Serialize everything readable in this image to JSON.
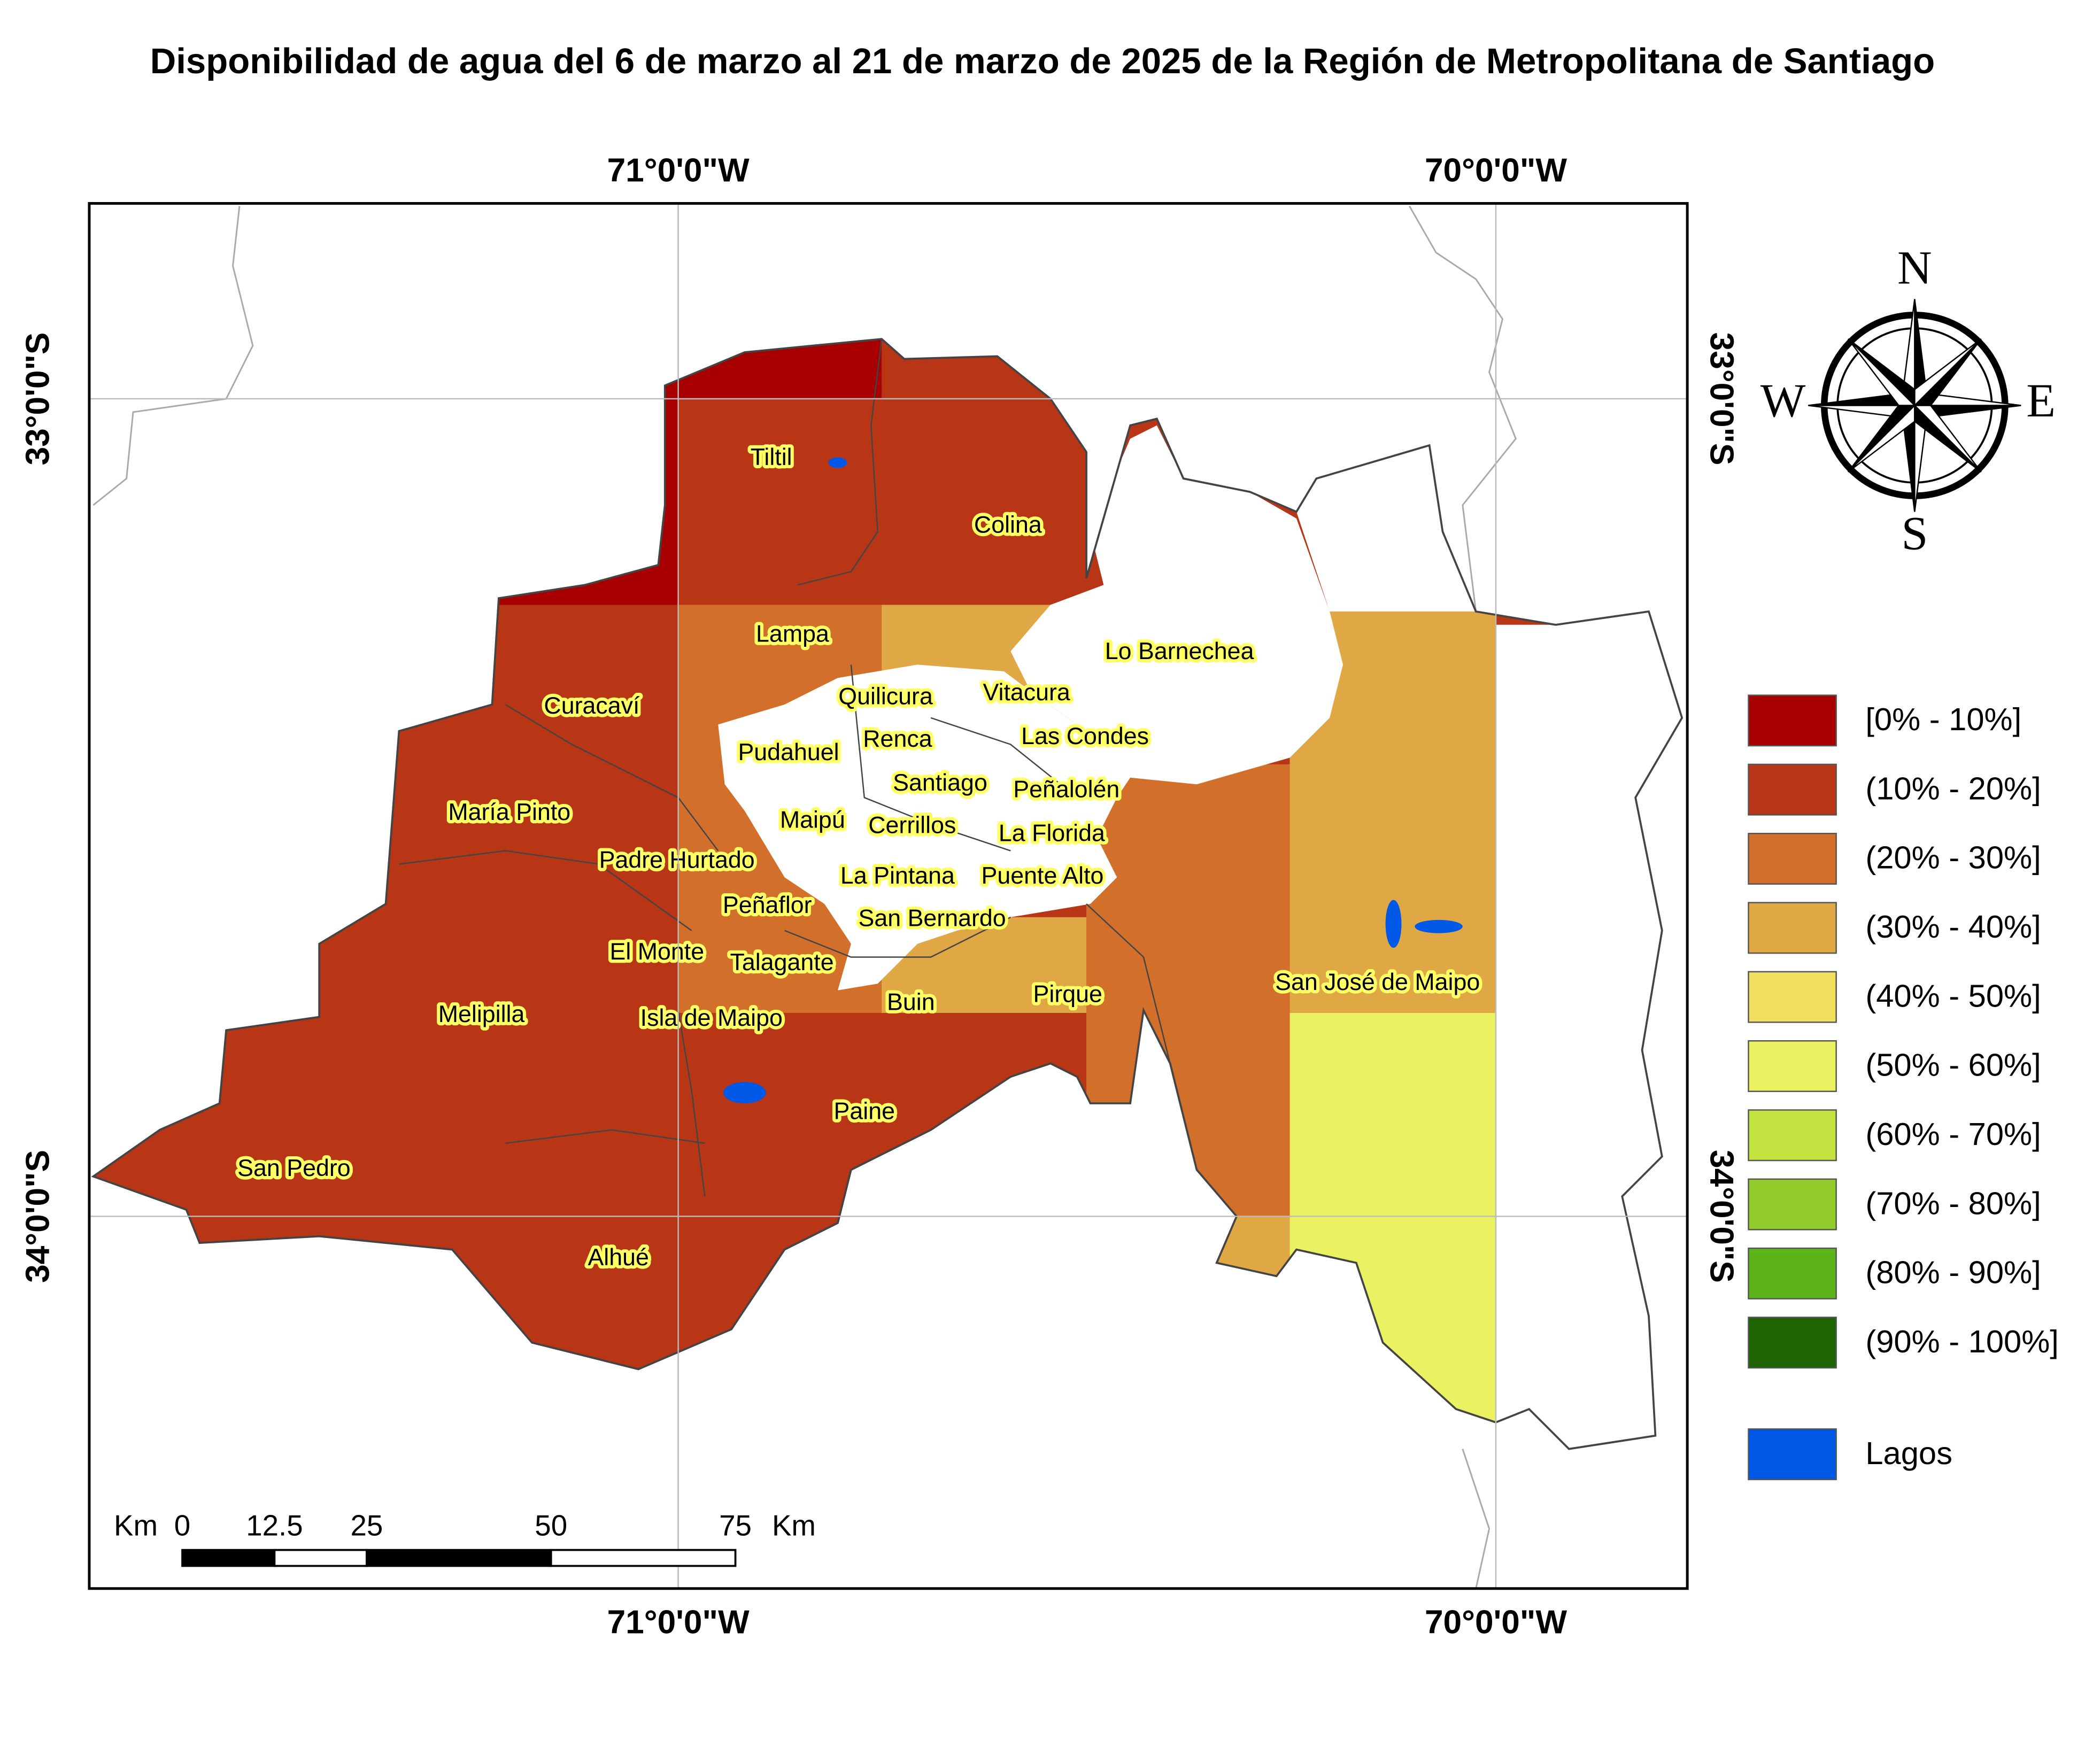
{
  "title": "Disponibilidad de agua del 6 de marzo al 21 de marzo de 2025 de la Región de Metropolitana de Santiago",
  "graticule": {
    "longitudes": [
      "71°0'0\"W",
      "70°0'0\"W"
    ],
    "latitudes": [
      "33°0'0\"S",
      "34°0'0\"S"
    ]
  },
  "compass": {
    "north": "N",
    "south": "S",
    "east": "E",
    "west": "W"
  },
  "legend": [
    {
      "label": "[0% - 10%]",
      "color": "#a80000"
    },
    {
      "label": "(10% - 20%]",
      "color": "#b83616"
    },
    {
      "label": "(20% - 30%]",
      "color": "#d2702b"
    },
    {
      "label": "(30% - 40%]",
      "color": "#e0a844"
    },
    {
      "label": "(40% - 50%]",
      "color": "#f0de5e"
    },
    {
      "label": "(50% - 60%]",
      "color": "#eaf261"
    },
    {
      "label": "(60% - 70%]",
      "color": "#c2e340"
    },
    {
      "label": "(70% - 80%]",
      "color": "#92cd2c"
    },
    {
      "label": "(80% - 90%]",
      "color": "#5db41a"
    },
    {
      "label": "(90% - 100%]",
      "color": "#1e6400"
    },
    {
      "label": "Lagos",
      "color": "#0058e6"
    }
  ],
  "communes": [
    "Tiltil",
    "Colina",
    "Lampa",
    "Lo Barnechea",
    "Curacaví",
    "Quilicura",
    "Vitacura",
    "Pudahuel",
    "Renca",
    "Las Condes",
    "Santiago",
    "Peñalolén",
    "María Pinto",
    "Maipú",
    "Cerrillos",
    "La Florida",
    "Padre Hurtado",
    "La Pintana",
    "Puente Alto",
    "Peñaflor",
    "San Bernardo",
    "El Monte",
    "Talagante",
    "San José de Maipo",
    "Buin",
    "Pirque",
    "Melipilla",
    "Isla de Maipo",
    "Paine",
    "San Pedro",
    "Alhué"
  ],
  "scale_bar": {
    "unit": "Km",
    "ticks": [
      0,
      12.5,
      25,
      50,
      75
    ]
  }
}
